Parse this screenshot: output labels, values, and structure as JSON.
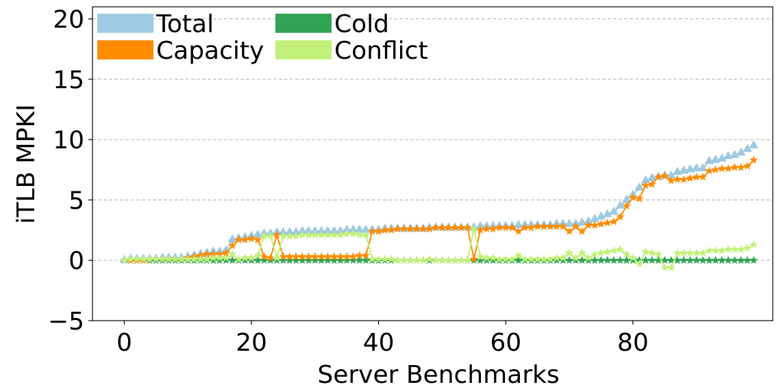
{
  "chart_data": {
    "type": "line",
    "xlabel": "Server Benchmarks",
    "ylabel": "iTLB MPKI",
    "x": [
      0,
      1,
      2,
      3,
      4,
      5,
      6,
      7,
      8,
      9,
      10,
      11,
      12,
      13,
      14,
      15,
      16,
      17,
      18,
      19,
      20,
      21,
      22,
      23,
      24,
      25,
      26,
      27,
      28,
      29,
      30,
      31,
      32,
      33,
      34,
      35,
      36,
      37,
      38,
      39,
      40,
      41,
      42,
      43,
      44,
      45,
      46,
      47,
      48,
      49,
      50,
      51,
      52,
      53,
      54,
      55,
      56,
      57,
      58,
      59,
      60,
      61,
      62,
      63,
      64,
      65,
      66,
      67,
      68,
      69,
      70,
      71,
      72,
      73,
      74,
      75,
      76,
      77,
      78,
      79,
      80,
      81,
      82,
      83,
      84,
      85,
      86,
      87,
      88,
      89,
      90,
      91,
      92,
      93,
      94,
      95,
      96,
      97,
      98,
      99
    ],
    "series": [
      {
        "name": "Total",
        "color": "#9ecae1",
        "marker": "triangle",
        "values": [
          0,
          0.1,
          0.1,
          0.1,
          0.1,
          0.1,
          0.2,
          0.2,
          0.2,
          0.2,
          0.3,
          0.4,
          0.5,
          0.6,
          0.7,
          0.7,
          0.8,
          1.7,
          1.8,
          1.9,
          2.0,
          2.1,
          2.2,
          2.2,
          2.3,
          2.3,
          2.3,
          2.3,
          2.4,
          2.4,
          2.4,
          2.4,
          2.4,
          2.4,
          2.4,
          2.5,
          2.5,
          2.5,
          2.5,
          2.5,
          2.5,
          2.6,
          2.6,
          2.6,
          2.6,
          2.6,
          2.6,
          2.6,
          2.7,
          2.7,
          2.7,
          2.7,
          2.7,
          2.7,
          2.7,
          2.7,
          2.8,
          2.8,
          2.8,
          2.8,
          2.8,
          2.8,
          2.9,
          2.9,
          2.9,
          2.9,
          2.9,
          2.9,
          3.0,
          3.0,
          3.0,
          3.0,
          3.1,
          3.2,
          3.4,
          3.6,
          3.8,
          4.0,
          4.5,
          5.0,
          5.4,
          6.0,
          6.6,
          6.8,
          6.9,
          7.0,
          7.0,
          7.3,
          7.4,
          7.5,
          7.6,
          7.6,
          8.2,
          8.3,
          8.4,
          8.6,
          8.7,
          8.9,
          9.2,
          9.5
        ]
      },
      {
        "name": "Cold",
        "color": "#31a354",
        "marker": "star",
        "values": [
          0,
          0,
          0,
          0,
          0,
          0,
          0,
          0,
          0,
          0,
          0,
          0,
          0,
          0,
          0,
          0,
          0,
          0,
          0,
          0,
          0,
          0,
          0,
          0,
          0,
          0,
          0,
          0,
          0,
          0,
          0,
          0,
          0,
          0,
          0,
          0,
          0,
          0,
          0,
          0,
          0,
          0,
          0,
          0,
          0,
          0,
          0,
          0,
          0,
          0,
          0,
          0,
          0,
          0,
          0,
          0,
          0,
          0,
          0,
          0,
          0,
          0,
          0,
          0,
          0,
          0,
          0,
          0,
          0,
          0,
          0,
          0,
          0,
          0,
          0,
          0,
          0,
          0,
          0,
          0,
          0,
          0,
          0,
          0,
          0,
          0,
          0,
          0,
          0,
          0,
          0,
          0,
          0,
          0,
          0,
          0,
          0,
          0,
          0,
          0
        ]
      },
      {
        "name": "Capacity",
        "color": "#ff8c00",
        "marker": "star",
        "values": [
          0,
          0,
          0,
          0,
          0.1,
          0.1,
          0.1,
          0.1,
          0.1,
          0.1,
          0.2,
          0.3,
          0.4,
          0.5,
          0.5,
          0.5,
          0.6,
          1.2,
          1.7,
          1.7,
          1.8,
          1.7,
          0.3,
          0.2,
          2.1,
          0.3,
          0.3,
          0.3,
          0.3,
          0.3,
          0.3,
          0.3,
          0.3,
          0.3,
          0.3,
          0.3,
          0.3,
          0.4,
          0.4,
          2.4,
          2.4,
          2.5,
          2.5,
          2.6,
          2.6,
          2.6,
          2.6,
          2.6,
          2.6,
          2.7,
          2.7,
          2.7,
          2.7,
          2.7,
          2.7,
          0.1,
          2.5,
          2.6,
          2.6,
          2.7,
          2.7,
          2.7,
          2.4,
          2.7,
          2.7,
          2.8,
          2.8,
          2.8,
          2.8,
          2.8,
          2.4,
          2.8,
          2.4,
          2.9,
          2.9,
          3.0,
          3.1,
          3.2,
          3.6,
          4.5,
          5.2,
          5.1,
          6.2,
          6.3,
          6.9,
          7.0,
          6.6,
          6.7,
          6.7,
          6.8,
          6.9,
          6.9,
          7.4,
          7.5,
          7.6,
          7.6,
          7.7,
          7.7,
          7.8,
          8.3
        ]
      },
      {
        "name": "Conflict",
        "color": "#c2f17a",
        "marker": "star",
        "values": [
          0,
          0.1,
          0.1,
          0.1,
          0.1,
          0.1,
          0.1,
          0.1,
          0.1,
          0.1,
          0.1,
          0.1,
          0.1,
          0.1,
          0.2,
          0.2,
          0.2,
          0.5,
          0.1,
          0.2,
          0.2,
          0.4,
          2.0,
          2.0,
          0.2,
          2.0,
          2.0,
          2.0,
          2.1,
          2.1,
          2.1,
          2.1,
          2.1,
          2.1,
          2.1,
          2.2,
          2.2,
          2.1,
          2.1,
          0.1,
          0.1,
          0.1,
          0.1,
          0.0,
          0.0,
          0.0,
          0.0,
          0.0,
          0.1,
          0.0,
          0.0,
          0.0,
          0.0,
          0.0,
          0.0,
          2.6,
          0.3,
          0.2,
          0.2,
          0.1,
          0.1,
          0.1,
          0.4,
          0.1,
          0.1,
          0.1,
          0.1,
          0.1,
          0.2,
          0.2,
          0.6,
          0.2,
          0.6,
          0.2,
          0.5,
          0.6,
          0.7,
          0.8,
          0.9,
          0.5,
          0.2,
          -0.3,
          0.7,
          0.6,
          0.5,
          -0.6,
          -0.6,
          0.6,
          0.6,
          0.6,
          0.6,
          0.6,
          0.8,
          0.8,
          0.8,
          0.9,
          0.9,
          0.9,
          1.0,
          1.3
        ]
      }
    ],
    "xlim": [
      -5,
      102
    ],
    "ylim": [
      -5,
      21
    ],
    "xticks": [
      0,
      20,
      40,
      60,
      80
    ],
    "yticks": [
      {
        "value": -5,
        "label": "−5"
      },
      0,
      5,
      10,
      15,
      20
    ],
    "grid": true,
    "legend": "upper left"
  }
}
